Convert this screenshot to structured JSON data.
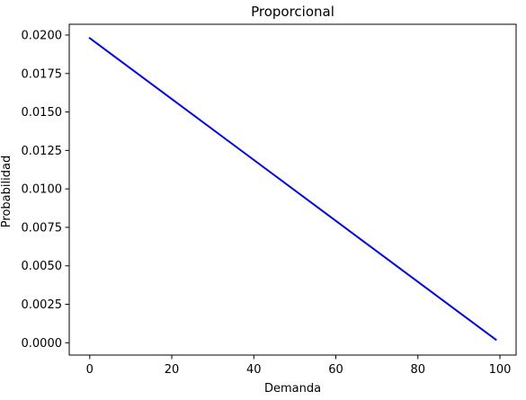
{
  "chart_data": {
    "type": "line",
    "title": "Proporcional",
    "xlabel": "Demanda",
    "ylabel": "Probabilidad",
    "xlim": [
      -5,
      103.95
    ],
    "ylim": [
      -0.0008,
      0.0207
    ],
    "x_ticks": [
      0,
      20,
      40,
      60,
      80,
      100
    ],
    "x_tick_labels": [
      "0",
      "20",
      "40",
      "60",
      "80",
      "100"
    ],
    "y_ticks": [
      0.0,
      0.0025,
      0.005,
      0.0075,
      0.01,
      0.0125,
      0.015,
      0.0175,
      0.02
    ],
    "y_tick_labels": [
      "0.0000",
      "0.0025",
      "0.0050",
      "0.0075",
      "0.0100",
      "0.0125",
      "0.0150",
      "0.0175",
      "0.0200"
    ],
    "grid": false,
    "series": [
      {
        "color": "#0000ff",
        "x": [
          0,
          99
        ],
        "y": [
          0.0198,
          0.0002
        ]
      }
    ]
  }
}
